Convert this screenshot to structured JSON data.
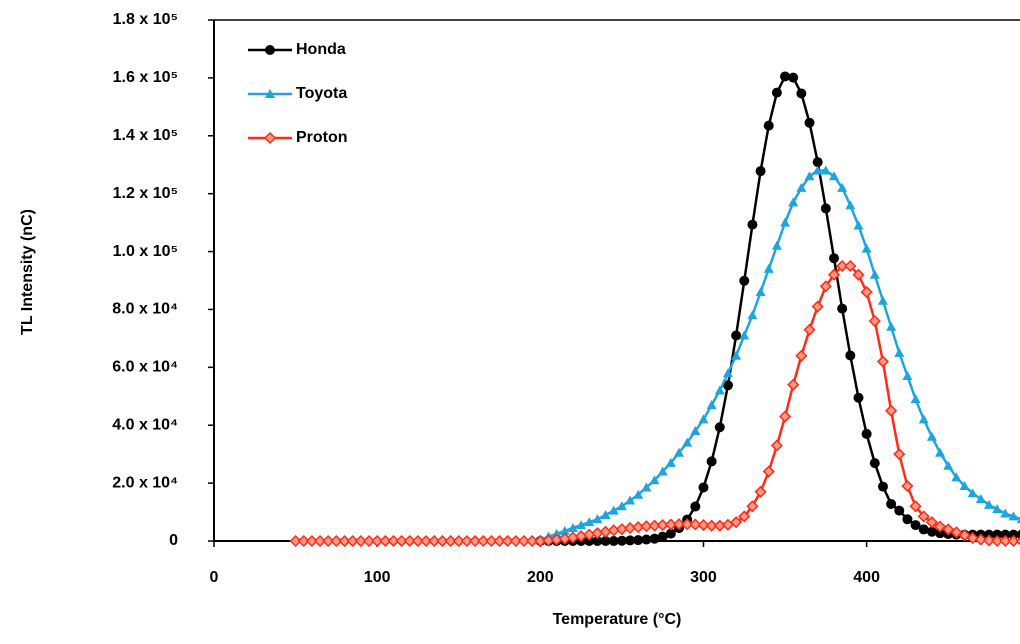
{
  "chart_data": {
    "type": "line",
    "xlabel": "Temperature (°C)",
    "ylabel": "TL Intensity (nC)",
    "x": [
      50,
      55,
      60,
      65,
      70,
      75,
      80,
      85,
      90,
      95,
      100,
      105,
      110,
      115,
      120,
      125,
      130,
      135,
      140,
      145,
      150,
      155,
      160,
      165,
      170,
      175,
      180,
      185,
      190,
      195,
      200,
      205,
      210,
      215,
      220,
      225,
      230,
      235,
      240,
      245,
      250,
      255,
      260,
      265,
      270,
      275,
      280,
      285,
      290,
      295,
      300,
      305,
      310,
      315,
      320,
      325,
      330,
      335,
      340,
      345,
      350,
      355,
      360,
      365,
      370,
      375,
      380,
      385,
      390,
      395,
      400,
      405,
      410,
      415,
      420,
      425,
      430,
      435,
      440,
      445,
      450,
      455,
      460,
      465,
      470,
      475,
      480,
      485,
      490,
      495
    ],
    "series": [
      {
        "name": "Honda",
        "color": "#000000",
        "marker": "circle",
        "values": [
          null,
          null,
          null,
          null,
          null,
          null,
          null,
          null,
          null,
          null,
          null,
          null,
          null,
          null,
          null,
          null,
          null,
          null,
          null,
          null,
          null,
          null,
          null,
          null,
          null,
          null,
          null,
          null,
          null,
          null,
          0,
          0,
          0,
          0,
          0,
          0,
          0,
          0,
          0,
          0,
          100,
          200,
          300,
          500,
          800,
          1500,
          2540,
          4440,
          7400,
          11900,
          18500,
          27500,
          39300,
          53800,
          71000,
          89900,
          109300,
          127800,
          143500,
          154900,
          160500,
          160100,
          154600,
          144500,
          130900,
          114900,
          97700,
          80300,
          64100,
          49500,
          37000,
          26900,
          18800,
          12800,
          10500,
          7500,
          5500,
          4000,
          3200,
          2700,
          2400,
          2200,
          2200,
          2200,
          2200,
          2200,
          2200,
          2200,
          2200,
          2200
        ]
      },
      {
        "name": "Toyota",
        "color": "#1ea5e0",
        "marker": "triangle",
        "values": [
          null,
          null,
          null,
          null,
          null,
          null,
          null,
          null,
          null,
          null,
          null,
          null,
          null,
          null,
          null,
          null,
          null,
          null,
          null,
          null,
          null,
          null,
          null,
          null,
          null,
          null,
          null,
          null,
          null,
          null,
          500,
          1500,
          2500,
          3500,
          4500,
          5500,
          6500,
          7500,
          9000,
          10500,
          12000,
          14000,
          16000,
          18500,
          21000,
          24000,
          27000,
          30500,
          34000,
          38000,
          42000,
          47000,
          52000,
          58000,
          64000,
          71000,
          78000,
          86000,
          94000,
          102000,
          110000,
          117000,
          122000,
          126000,
          128000,
          128000,
          126000,
          122000,
          116000,
          109000,
          101000,
          92000,
          83000,
          74000,
          65000,
          57000,
          49000,
          42000,
          36000,
          30500,
          26000,
          22000,
          19000,
          16500,
          14500,
          12500,
          11000,
          9500,
          8500,
          7500
        ]
      },
      {
        "name": "Proton",
        "color": "#ff2a1a",
        "marker": "diamond",
        "values": [
          0,
          0,
          0,
          0,
          0,
          0,
          0,
          0,
          0,
          0,
          0,
          0,
          0,
          0,
          0,
          0,
          0,
          0,
          0,
          0,
          0,
          0,
          0,
          0,
          0,
          0,
          0,
          0,
          0,
          0,
          0,
          200,
          500,
          800,
          1200,
          1700,
          2200,
          2700,
          3200,
          3700,
          4100,
          4500,
          4800,
          5100,
          5300,
          5500,
          5700,
          5800,
          5800,
          5700,
          5500,
          5300,
          5300,
          5600,
          6500,
          8500,
          12000,
          17000,
          24000,
          33000,
          43000,
          54000,
          64000,
          73000,
          81000,
          88000,
          92000,
          95000,
          95000,
          92000,
          86000,
          76000,
          62000,
          45000,
          30000,
          19000,
          12000,
          8500,
          6500,
          5000,
          4000,
          3000,
          2000,
          1000,
          500,
          200,
          0,
          0,
          0,
          0
        ]
      }
    ],
    "xlim": [
      0,
      494
    ],
    "xticks": [
      0,
      100,
      200,
      300,
      400
    ],
    "ylim": [
      0,
      180000
    ],
    "yticks": [
      0,
      {
        "value": 20000,
        "label": "2.0 x 10⁴"
      },
      {
        "value": 40000,
        "label": "4.0 x 10⁴"
      },
      {
        "value": 60000,
        "label": "6.0 x 10⁴"
      },
      {
        "value": 80000,
        "label": "8.0 x 10⁴"
      },
      {
        "value": 100000,
        "label": "1.0 x 10⁵"
      },
      {
        "value": 120000,
        "label": "1.2 x 10⁵"
      },
      {
        "value": 140000,
        "label": "1.4 x 10⁵"
      },
      {
        "value": 160000,
        "label": "1.6 x 10⁵"
      },
      {
        "value": 180000,
        "label": "1.8 x 10⁵"
      }
    ],
    "grid": false,
    "legend": "upper left"
  }
}
